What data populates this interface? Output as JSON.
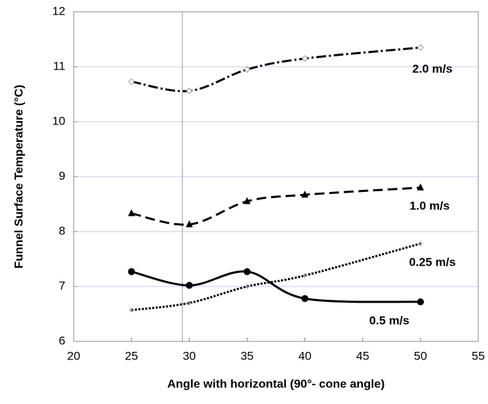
{
  "chart_data": {
    "type": "line",
    "x_label": "Angle with horizontal (90°- cone angle)",
    "y_label": "Funnel Surface Temperature (°C)",
    "x": [
      25,
      30,
      35,
      40,
      50
    ],
    "series": [
      {
        "name": "2.0 m/s",
        "color": "#000000",
        "line_style": "dashdot",
        "marker": "diamond",
        "values": [
          10.73,
          10.56,
          10.95,
          11.15,
          11.35
        ]
      },
      {
        "name": "1.0 m/s",
        "color": "#000000",
        "line_style": "dashed",
        "marker": "triangle",
        "values": [
          8.33,
          8.13,
          8.55,
          8.67,
          8.8
        ]
      },
      {
        "name": "0.25 m/s",
        "color": "#000000",
        "line_style": "dotted",
        "marker": "plus",
        "values": [
          6.57,
          6.7,
          7.0,
          7.2,
          7.78
        ]
      },
      {
        "name": "0.5 m/s",
        "color": "#000000",
        "line_style": "solid",
        "marker": "circle",
        "values": [
          7.27,
          7.02,
          7.27,
          6.78,
          6.72
        ]
      }
    ],
    "xlim": [
      20,
      55
    ],
    "xticks": [
      20,
      25,
      30,
      35,
      40,
      45,
      50,
      55
    ],
    "ylim": [
      6,
      12
    ],
    "yticks": [
      6,
      7,
      8,
      9,
      10,
      11,
      12
    ],
    "grid": true,
    "vline_x": 29.4
  }
}
